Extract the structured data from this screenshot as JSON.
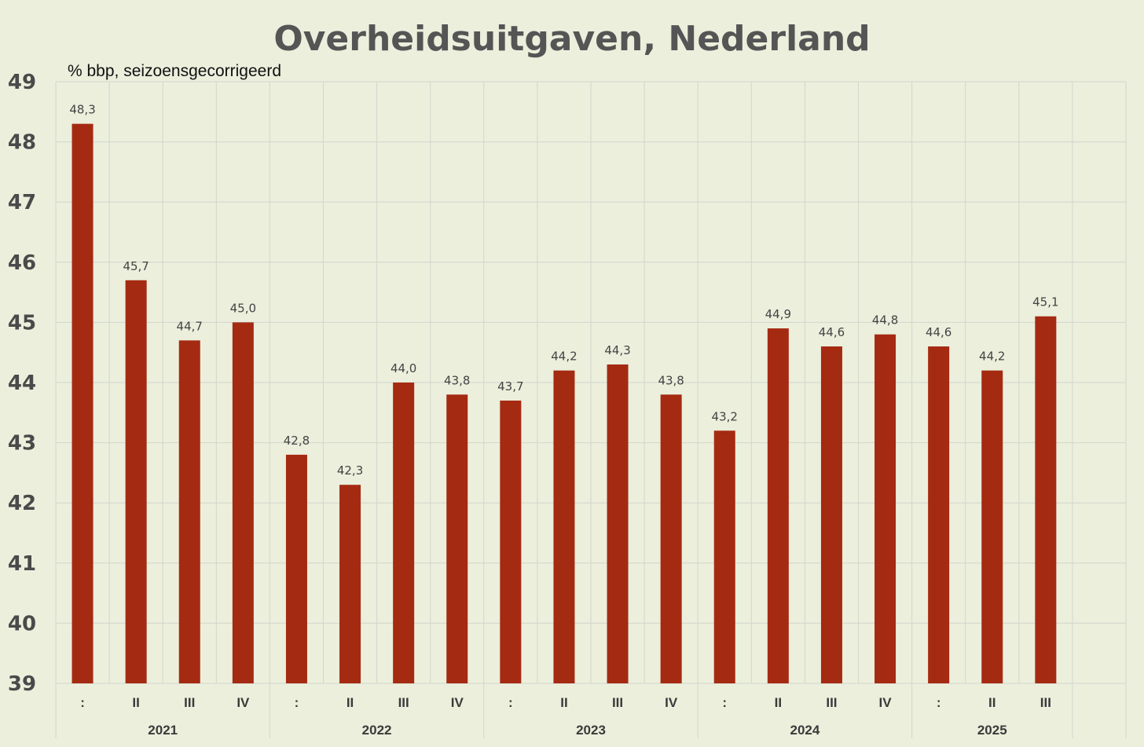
{
  "chart_data": {
    "type": "bar",
    "title": "Overheidsuitgaven, Nederland",
    "ylabel": "% bbp, seizoensgecorrigeerd",
    "xlabel": "",
    "ylim": [
      39,
      49
    ],
    "yticks": [
      "39",
      "40",
      "41",
      "42",
      "43",
      "44",
      "45",
      "46",
      "47",
      "48",
      "49"
    ],
    "categories": [
      ":",
      "II",
      "III",
      "IV",
      ":",
      "II",
      "III",
      "IV",
      ":",
      "II",
      "III",
      "IV",
      ":",
      "II",
      "III",
      "IV",
      ":",
      "II",
      "III"
    ],
    "values": [
      48.3,
      45.7,
      44.7,
      45.0,
      42.8,
      42.3,
      44.0,
      43.8,
      43.7,
      44.2,
      44.3,
      43.8,
      43.2,
      44.9,
      44.6,
      44.8,
      44.6,
      44.2,
      45.1
    ],
    "data_labels": [
      "48,3",
      "45,7",
      "44,7",
      "45,0",
      "42,8",
      "42,3",
      "44,0",
      "43,8",
      "43,7",
      "44,2",
      "44,3",
      "43,8",
      "43,2",
      "44,9",
      "44,6",
      "44,8",
      "44,6",
      "44,2",
      "45,1"
    ],
    "groups": [
      {
        "label": "2021",
        "count": 4
      },
      {
        "label": "2022",
        "count": 4
      },
      {
        "label": "2023",
        "count": 4
      },
      {
        "label": "2024",
        "count": 4
      },
      {
        "label": "2025",
        "count": 3
      }
    ],
    "bar_color": "#a52a12",
    "background_color": "#ebefdc",
    "grid": true,
    "legend": "none"
  }
}
